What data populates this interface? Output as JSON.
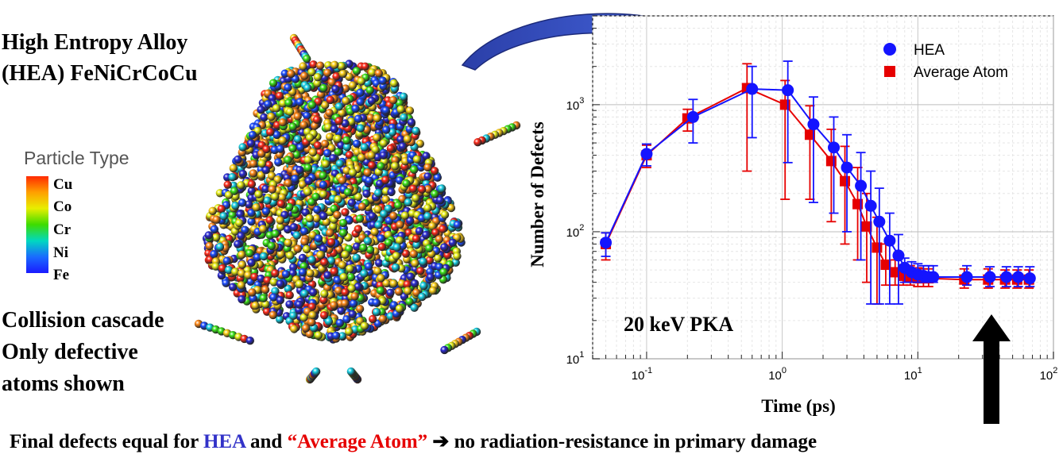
{
  "left_panel": {
    "title_line1": "High Entropy Alloy",
    "title_line2": "(HEA) FeNiCrCoCu",
    "legend_title": "Particle Type",
    "legend_items": [
      "Cu",
      "Co",
      "Cr",
      "Ni",
      "Fe"
    ],
    "caption_line1": "Collision cascade",
    "caption_line2": "Only defective",
    "caption_line3": "atoms shown",
    "atom_colors": [
      "#ff2a1a",
      "#ffd21a",
      "#e9f01a",
      "#3de61a",
      "#1ad2e6",
      "#1a4bff",
      "#2a2ad2",
      "#ff8a1a"
    ]
  },
  "chart_data": {
    "type": "scatter",
    "xscale": "log",
    "yscale": "log",
    "xlim": [
      0.04,
      100
    ],
    "ylim": [
      10,
      5000
    ],
    "xlabel": "Time (ps)",
    "ylabel": "Number of Defects",
    "x_ticks": [
      {
        "v": 0.1,
        "base": "10",
        "exp": "-1"
      },
      {
        "v": 1,
        "base": "10",
        "exp": "0"
      },
      {
        "v": 10,
        "base": "10",
        "exp": "1"
      },
      {
        "v": 100,
        "base": "10",
        "exp": "2"
      }
    ],
    "y_ticks": [
      {
        "v": 10,
        "base": "10",
        "exp": "1"
      },
      {
        "v": 100,
        "base": "10",
        "exp": "2"
      },
      {
        "v": 1000,
        "base": "10",
        "exp": "3"
      }
    ],
    "grid": true,
    "legend_position": "top-right",
    "annotation": "20 keV PKA",
    "series": [
      {
        "name": "HEA",
        "color": "#1414ff",
        "marker": "circle",
        "x": [
          0.05,
          0.1,
          0.22,
          0.6,
          1.1,
          1.7,
          2.4,
          3.0,
          3.8,
          4.5,
          5.2,
          6.2,
          7.2,
          8.0,
          9.0,
          10.0,
          11.0,
          12.0,
          13.0,
          23.0,
          34.0,
          45.0,
          55.0,
          67.0
        ],
        "y": [
          82,
          410,
          800,
          1330,
          1300,
          700,
          460,
          320,
          230,
          160,
          120,
          85,
          65,
          52,
          48,
          46,
          45,
          44,
          44,
          44,
          44,
          44,
          44,
          43
        ],
        "err_low": [
          64,
          330,
          500,
          550,
          350,
          170,
          140,
          100,
          60,
          27,
          27,
          27,
          27,
          40,
          40,
          40,
          40,
          40,
          40,
          38,
          37,
          37,
          37,
          37
        ],
        "err_high": [
          98,
          490,
          1100,
          2000,
          2200,
          1150,
          800,
          580,
          420,
          300,
          220,
          140,
          95,
          62,
          58,
          56,
          54,
          54,
          54,
          54,
          53,
          53,
          53,
          53
        ]
      },
      {
        "name": "Average Atom",
        "color": "#e60000",
        "marker": "square",
        "x": [
          0.05,
          0.1,
          0.2,
          0.55,
          1.05,
          1.6,
          2.3,
          2.9,
          3.6,
          4.2,
          5.0,
          5.8,
          6.8,
          7.8,
          8.8,
          10.0,
          11.0,
          12.0,
          22.0,
          33.0,
          44.0,
          54.0,
          66.0
        ],
        "y": [
          80,
          400,
          780,
          1350,
          1000,
          580,
          360,
          250,
          165,
          110,
          75,
          55,
          48,
          45,
          44,
          43,
          43,
          43,
          42,
          42,
          42,
          42,
          42
        ],
        "err_low": [
          60,
          320,
          620,
          300,
          180,
          180,
          120,
          80,
          60,
          40,
          27,
          38,
          38,
          38,
          38,
          37,
          37,
          37,
          36,
          36,
          36,
          36,
          36
        ],
        "err_high": [
          98,
          480,
          920,
          2100,
          1550,
          980,
          640,
          470,
          320,
          200,
          130,
          80,
          60,
          55,
          54,
          52,
          51,
          51,
          51,
          51,
          50,
          50,
          50
        ]
      }
    ]
  },
  "bottom": {
    "prefix": "Final defects equal for ",
    "hea": "HEA",
    "and": " and ",
    "avg": "“Average Atom”",
    "arrow": " ➔ ",
    "suffix": "no radiation-resistance in primary damage"
  }
}
